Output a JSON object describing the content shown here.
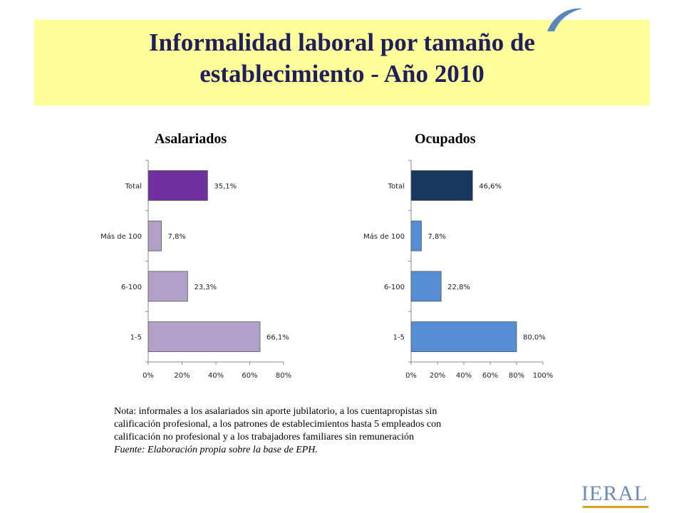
{
  "header": {
    "title_line1": "Informalidad laboral por tamaño de",
    "title_line2": "establecimiento - Año 2010"
  },
  "chart_data": [
    {
      "type": "bar",
      "orientation": "horizontal",
      "title": "Asalariados",
      "categories": [
        "Total",
        "Más de 100",
        "6-100",
        "1-5"
      ],
      "values": [
        35.1,
        7.8,
        23.3,
        66.1
      ],
      "data_labels": [
        "35,1%",
        "7,8%",
        "23,3%",
        "66,1%"
      ],
      "bar_colors": [
        "#7030a0",
        "#b1a0c7",
        "#b1a0c7",
        "#b1a0c7"
      ],
      "xlim": [
        0,
        80
      ],
      "xticks": [
        0,
        20,
        40,
        60,
        80
      ],
      "xtick_labels": [
        "0%",
        "20%",
        "40%",
        "60%",
        "80%"
      ],
      "grid": false,
      "legend": "none"
    },
    {
      "type": "bar",
      "orientation": "horizontal",
      "title": "Ocupados",
      "categories": [
        "Total",
        "Más de 100",
        "6-100",
        "1-5"
      ],
      "values": [
        46.6,
        7.8,
        22.8,
        80.0
      ],
      "data_labels": [
        "46,6%",
        "7,8%",
        "22,8%",
        "80,0%"
      ],
      "bar_colors": [
        "#17375e",
        "#558ed5",
        "#558ed5",
        "#558ed5"
      ],
      "xlim": [
        0,
        100
      ],
      "xticks": [
        0,
        20,
        40,
        60,
        80,
        100
      ],
      "xtick_labels": [
        "0%",
        "20%",
        "40%",
        "60%",
        "80%",
        "100%"
      ],
      "grid": false,
      "legend": "none"
    }
  ],
  "note": {
    "lines": [
      "Nota: informales a los asalariados sin aporte jubilatorio, a los cuentapropistas sin",
      "calificación profesional, a los patrones de establecimientos hasta 5 empleados con",
      "calificación no profesional y a los trabajadores familiares sin remuneración"
    ],
    "source": "Fuente: Elaboración propia sobre la base de EPH."
  },
  "logo": {
    "text": "IERAL",
    "icon": "ieral-logo-icon"
  }
}
